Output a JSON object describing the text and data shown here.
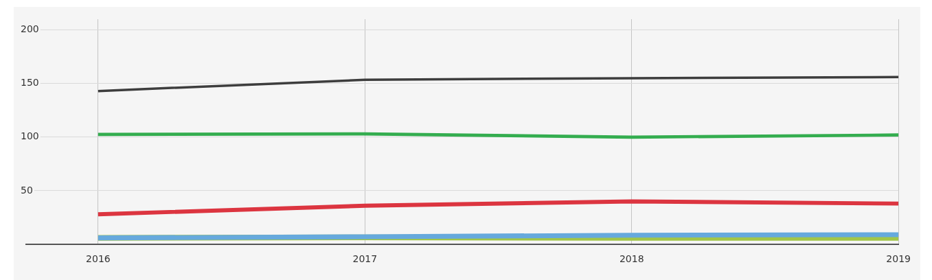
{
  "chart_data": {
    "type": "line",
    "x": [
      2016,
      2017,
      2018,
      2019
    ],
    "xlim": [
      2015.73,
      2019
    ],
    "xticks": [
      2016,
      2017,
      2018,
      2019
    ],
    "ylim": [
      0,
      210
    ],
    "yticks": [
      50,
      100,
      150,
      200
    ],
    "grid": true,
    "marker": "none",
    "line_style": "solid",
    "series": [
      {
        "color": "#3d3d3d",
        "values": [
          143,
          153.5,
          155,
          156
        ]
      },
      {
        "color": "#34ad4f",
        "values": [
          102.5,
          103,
          100,
          102
        ]
      },
      {
        "color": "#dc3540",
        "values": [
          28,
          36,
          40,
          38
        ]
      },
      {
        "color": "#66a9dd",
        "values": [
          6,
          7,
          8.5,
          9
        ]
      },
      {
        "color": "#a2c648",
        "values": [
          6,
          6.5,
          6,
          6
        ]
      }
    ]
  }
}
